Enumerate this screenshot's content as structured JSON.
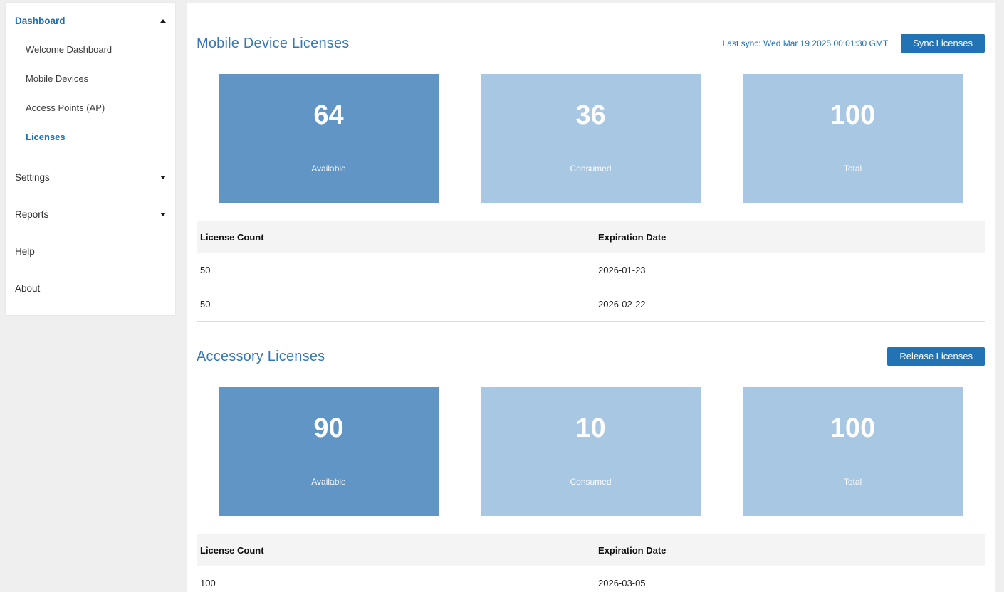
{
  "colors": {
    "page_background": "#efefef",
    "panel_background": "#ffffff",
    "brand_blue": "#1d70b4",
    "heading_blue": "#3577b5",
    "button_blue": "#2173b4",
    "card_available_blue": "#6095c5",
    "card_light_blue": "#a8c7e2"
  },
  "sidebar": {
    "dashboard": {
      "label": "Dashboard"
    },
    "items": [
      {
        "label": "Welcome Dashboard"
      },
      {
        "label": "Mobile Devices"
      },
      {
        "label": "Access Points (AP)"
      },
      {
        "label": "Licenses"
      }
    ],
    "settings": {
      "label": "Settings"
    },
    "reports": {
      "label": "Reports"
    },
    "help": {
      "label": "Help"
    },
    "about": {
      "label": "About"
    }
  },
  "mobile_licenses": {
    "title": "Mobile Device Licenses",
    "last_sync": "Last sync: Wed Mar 19 2025 00:01:30 GMT",
    "sync_button_label": "Sync Licenses",
    "cards": [
      {
        "value": "64",
        "label": "Available"
      },
      {
        "value": "36",
        "label": "Consumed"
      },
      {
        "value": "100",
        "label": "Total"
      }
    ],
    "table": {
      "headers": [
        "License Count",
        "Expiration Date"
      ],
      "rows": [
        [
          "50",
          "2026-01-23"
        ],
        [
          "50",
          "2026-02-22"
        ]
      ]
    }
  },
  "accessory_licenses": {
    "title": "Accessory Licenses",
    "release_button_label": "Release Licenses",
    "cards": [
      {
        "value": "90",
        "label": "Available"
      },
      {
        "value": "10",
        "label": "Consumed"
      },
      {
        "value": "100",
        "label": "Total"
      }
    ],
    "table": {
      "headers": [
        "License Count",
        "Expiration Date"
      ],
      "rows": [
        [
          "100",
          "2026-03-05"
        ]
      ]
    }
  }
}
